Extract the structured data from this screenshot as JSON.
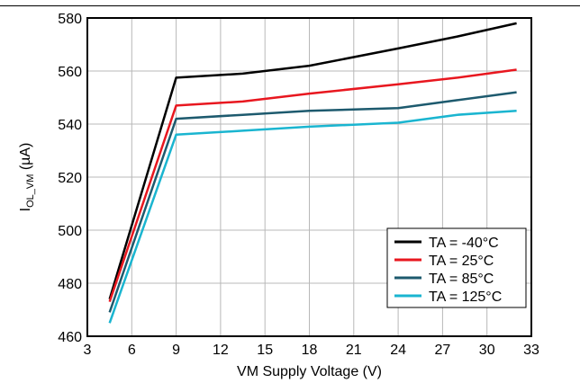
{
  "chart_data": {
    "type": "line",
    "title": "",
    "xlabel": "VM Supply Voltage (V)",
    "ylabel_main": "I",
    "ylabel_sub": "OL_VM",
    "ylabel_unit": " (µA)",
    "xlim": [
      3,
      33
    ],
    "ylim": [
      460,
      580
    ],
    "x_ticks": [
      3,
      6,
      9,
      12,
      15,
      18,
      21,
      24,
      27,
      30,
      33
    ],
    "y_ticks": [
      460,
      480,
      500,
      520,
      540,
      560,
      580
    ],
    "grid": true,
    "legend_position": "bottom-right",
    "series": [
      {
        "name": "TA = -40°C",
        "color": "#000000",
        "x": [
          4.5,
          9,
          13.5,
          18,
          24,
          28,
          32
        ],
        "y": [
          474,
          557.5,
          559,
          562,
          568.5,
          573,
          578
        ]
      },
      {
        "name": "TA = 25°C",
        "color": "#e8171f",
        "x": [
          4.5,
          9,
          13.5,
          18,
          24,
          28,
          32
        ],
        "y": [
          473,
          547,
          548.5,
          551.5,
          555,
          557.5,
          560.5
        ]
      },
      {
        "name": "TA = 85°C",
        "color": "#1d5a6e",
        "x": [
          4.5,
          9,
          13.5,
          18,
          24,
          28,
          32
        ],
        "y": [
          469,
          542,
          543.5,
          545,
          546,
          549,
          552
        ]
      },
      {
        "name": "TA = 125°C",
        "color": "#1ab5d0",
        "x": [
          4.5,
          9,
          13.5,
          18,
          24,
          28,
          32
        ],
        "y": [
          465,
          536,
          537.5,
          539,
          540.5,
          543.5,
          545
        ]
      }
    ]
  }
}
